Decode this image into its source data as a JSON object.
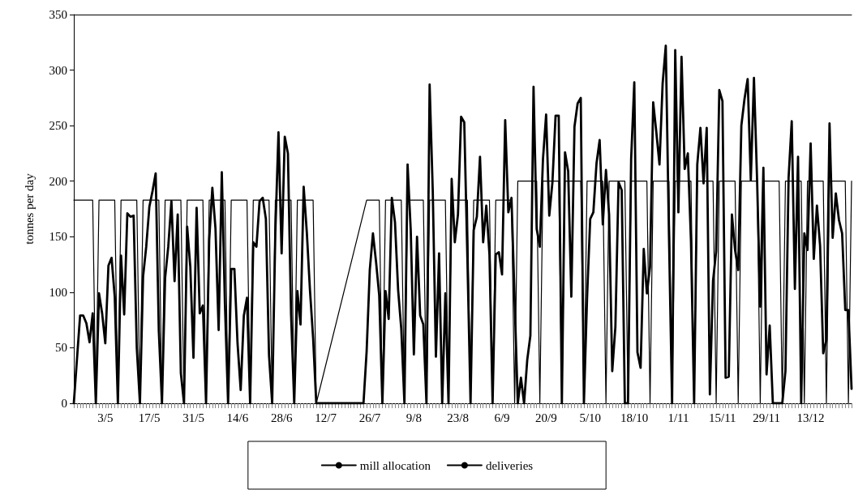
{
  "chart_data": {
    "type": "line",
    "ylabel": "tonnes per day",
    "ylim": [
      0,
      350
    ],
    "yticks": [
      0,
      50,
      100,
      150,
      200,
      250,
      300,
      350
    ],
    "categories": [
      null,
      null,
      null,
      null,
      null,
      null,
      null,
      null,
      null,
      null,
      "3/5",
      null,
      null,
      null,
      null,
      null,
      null,
      null,
      null,
      null,
      null,
      null,
      null,
      null,
      "17/5",
      null,
      null,
      null,
      null,
      null,
      null,
      null,
      null,
      null,
      null,
      null,
      null,
      null,
      "31/5",
      null,
      null,
      null,
      null,
      null,
      null,
      null,
      null,
      null,
      null,
      null,
      null,
      null,
      "14/6",
      null,
      null,
      null,
      null,
      null,
      null,
      null,
      null,
      null,
      null,
      null,
      null,
      null,
      "28/6",
      null,
      null,
      null,
      null,
      null,
      null,
      null,
      null,
      null,
      null,
      null,
      null,
      null,
      "12/7",
      null,
      null,
      null,
      null,
      null,
      null,
      null,
      null,
      null,
      null,
      null,
      null,
      null,
      "26/7",
      null,
      null,
      null,
      null,
      null,
      null,
      null,
      null,
      null,
      null,
      null,
      null,
      null,
      "9/8",
      null,
      null,
      null,
      null,
      null,
      null,
      null,
      null,
      null,
      null,
      null,
      null,
      null,
      "23/8",
      null,
      null,
      null,
      null,
      null,
      null,
      null,
      null,
      null,
      null,
      null,
      null,
      null,
      "6/9",
      null,
      null,
      null,
      null,
      null,
      null,
      null,
      null,
      null,
      null,
      null,
      null,
      null,
      "20/9",
      null,
      null,
      null,
      null,
      null,
      null,
      null,
      null,
      null,
      null,
      null,
      null,
      null,
      "5/10",
      null,
      null,
      null,
      null,
      null,
      null,
      null,
      null,
      null,
      null,
      null,
      null,
      null,
      "18/10",
      null,
      null,
      null,
      null,
      null,
      null,
      null,
      null,
      null,
      null,
      null,
      null,
      null,
      "1/11",
      null,
      null,
      null,
      null,
      null,
      null,
      null,
      null,
      null,
      null,
      null,
      null,
      null,
      "15/11",
      null,
      null,
      null,
      null,
      null,
      null,
      null,
      null,
      null,
      null,
      null,
      null,
      null,
      "29/11",
      null,
      null,
      null,
      null,
      null,
      null,
      null,
      null,
      null,
      null,
      null,
      null,
      null,
      "13/12",
      null,
      null,
      null,
      null,
      null,
      null,
      null,
      null,
      null,
      null,
      null,
      null,
      null
    ],
    "grid": false,
    "legend": "bottom",
    "line_style": "solid",
    "series": [
      {
        "name": "mill allocation",
        "color": "#000000",
        "values": [
          183,
          183,
          183,
          183,
          183,
          183,
          183,
          0,
          183,
          183,
          183,
          183,
          183,
          183,
          0,
          183,
          183,
          183,
          183,
          183,
          183,
          0,
          183,
          183,
          183,
          183,
          183,
          183,
          0,
          183,
          183,
          183,
          183,
          183,
          183,
          0,
          183,
          183,
          183,
          183,
          183,
          183,
          0,
          183,
          183,
          183,
          183,
          183,
          183,
          0,
          183,
          183,
          183,
          183,
          183,
          183,
          0,
          183,
          183,
          183,
          183,
          183,
          183,
          0,
          183,
          183,
          183,
          183,
          183,
          183,
          0,
          183,
          183,
          183,
          183,
          183,
          183,
          0,
          null,
          null,
          null,
          null,
          null,
          null,
          null,
          null,
          null,
          null,
          null,
          null,
          null,
          null,
          null,
          183,
          183,
          183,
          183,
          183,
          0,
          183,
          183,
          183,
          183,
          183,
          183,
          0,
          183,
          183,
          183,
          183,
          183,
          183,
          0,
          183,
          183,
          183,
          183,
          183,
          183,
          0,
          183,
          183,
          183,
          183,
          183,
          183,
          0,
          183,
          183,
          183,
          183,
          183,
          183,
          0,
          183,
          183,
          183,
          183,
          183,
          183,
          0,
          200,
          200,
          200,
          200,
          200,
          200,
          200,
          0,
          200,
          200,
          200,
          200,
          200,
          200,
          0,
          200,
          200,
          200,
          200,
          200,
          200,
          0,
          200,
          200,
          200,
          200,
          200,
          200,
          0,
          200,
          200,
          200,
          200,
          200,
          200,
          0,
          200,
          200,
          200,
          200,
          200,
          200,
          0,
          200,
          200,
          200,
          200,
          200,
          200,
          0,
          200,
          200,
          200,
          200,
          200,
          200,
          0,
          200,
          200,
          200,
          200,
          200,
          200,
          0,
          200,
          200,
          200,
          200,
          200,
          200,
          0,
          200,
          200,
          200,
          200,
          200,
          200,
          0,
          200,
          200,
          200,
          200,
          200,
          200,
          0,
          200,
          200,
          200,
          200,
          200,
          200,
          0,
          200,
          200,
          200,
          200,
          200,
          200,
          0,
          200,
          200,
          200,
          200,
          200,
          200,
          0,
          200
        ]
      },
      {
        "name": "deliveries",
        "color": "#000000",
        "values": [
          0,
          null,
          79,
          79,
          72,
          55,
          81,
          0,
          99,
          81,
          54,
          124,
          131,
          96,
          0,
          133,
          80,
          171,
          168,
          169,
          50,
          0,
          114,
          141,
          177,
          191,
          207,
          65,
          0,
          113,
          141,
          182,
          110,
          170,
          27,
          0,
          159,
          123,
          41,
          176,
          81,
          88,
          0,
          147,
          194,
          157,
          66,
          208,
          89,
          0,
          121,
          121,
          54,
          12,
          79,
          95,
          0,
          145,
          141,
          182,
          185,
          166,
          43,
          0,
          154,
          244,
          135,
          240,
          225,
          80,
          0,
          101,
          71,
          195,
          154,
          102,
          59,
          0,
          0,
          0,
          0,
          0,
          0,
          0,
          0,
          0,
          0,
          0,
          0,
          0,
          0,
          0,
          0,
          47,
          120,
          153,
          127,
          97,
          0,
          101,
          76,
          185,
          163,
          102,
          67,
          0,
          215,
          156,
          44,
          150,
          79,
          71,
          0,
          287,
          191,
          42,
          135,
          0,
          99,
          0,
          202,
          145,
          170,
          258,
          253,
          130,
          0,
          156,
          168,
          222,
          145,
          178,
          134,
          0,
          134,
          136,
          116,
          255,
          172,
          185,
          null,
          0,
          23,
          0,
          39,
          61,
          285,
          157,
          141,
          220,
          260,
          169,
          199,
          259,
          259,
          0,
          226,
          209,
          96,
          249,
          270,
          275,
          0,
          95,
          166,
          172,
          216,
          237,
          161,
          210,
          170,
          29,
          69,
          199,
          192,
          0,
          0,
          220,
          289,
          46,
          32,
          139,
          99,
          123,
          271,
          244,
          215,
          288,
          322,
          153,
          0,
          318,
          172,
          312,
          211,
          225,
          146,
          0,
          215,
          248,
          198,
          248,
          8,
          110,
          137,
          282,
          272,
          23,
          24,
          170,
          138,
          120,
          250,
          274,
          292,
          201,
          293,
          201,
          87,
          212,
          26,
          70,
          0,
          0,
          0,
          0,
          29,
          203,
          254,
          103,
          222,
          0,
          153,
          138,
          234,
          130,
          178,
          142,
          45,
          57,
          252,
          149,
          189,
          165,
          153,
          84,
          84,
          13
        ]
      }
    ]
  }
}
